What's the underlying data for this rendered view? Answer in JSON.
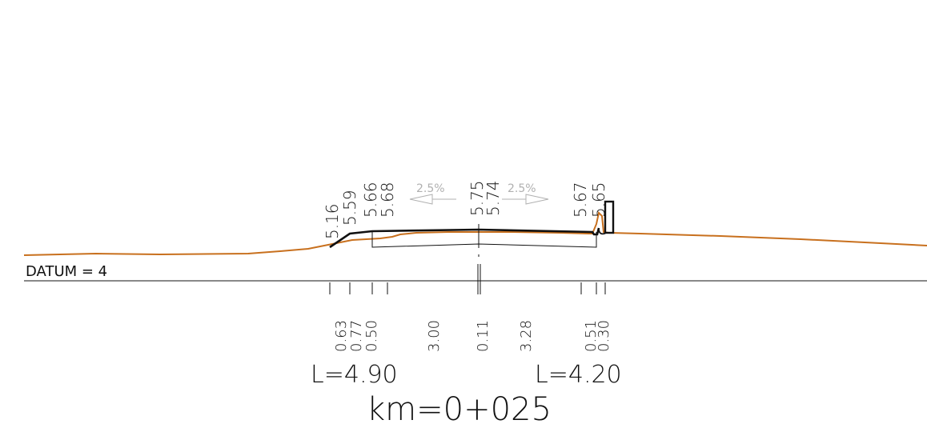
{
  "datum_label": "DATUM = 4",
  "station_label": "km=0+025",
  "left_length_label": "L=4.90",
  "right_length_label": "L=4.20",
  "slope_left_label": "2.5%",
  "slope_right_label": "2.5%",
  "elevations": [
    "5.16",
    "5.59",
    "5.66",
    "5.68",
    "5.75",
    "5.74",
    "5.67",
    "5.65"
  ],
  "offsets": [
    "0.63",
    "0.77",
    "0.50",
    "3.00",
    "0.11",
    "3.28",
    "0.51",
    "0.30"
  ],
  "colors": {
    "ground_line": "#c8701e",
    "design_line": "#111111",
    "slope_arrow": "#b0b0b0"
  }
}
